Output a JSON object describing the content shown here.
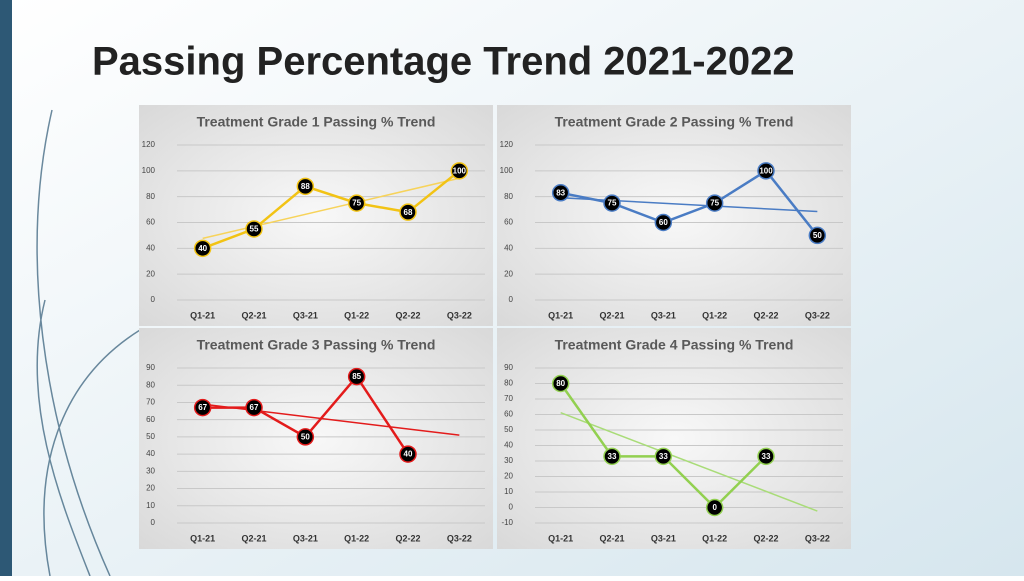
{
  "title": "Passing Percentage Trend 2021-2022",
  "chart_data": [
    {
      "type": "line",
      "title": "Treatment Grade 1 Passing % Trend",
      "categories": [
        "Q1-21",
        "Q2-21",
        "Q3-21",
        "Q1-22",
        "Q2-22",
        "Q3-22"
      ],
      "series": [
        {
          "color": "#f2c314",
          "values": [
            40,
            55,
            88,
            75,
            68,
            100
          ]
        }
      ],
      "ylim": [
        0,
        120
      ],
      "yticks": [
        0,
        20,
        40,
        60,
        80,
        100,
        120
      ],
      "grid": true,
      "trendline": true,
      "trend_color": "#f7d35a"
    },
    {
      "type": "line",
      "title": "Treatment Grade 2 Passing % Trend",
      "categories": [
        "Q1-21",
        "Q2-21",
        "Q3-21",
        "Q1-22",
        "Q2-22",
        "Q3-22"
      ],
      "series": [
        {
          "color": "#4a7cc4",
          "values": [
            83,
            75,
            60,
            75,
            100,
            50
          ]
        }
      ],
      "ylim": [
        0,
        120
      ],
      "yticks": [
        0,
        20,
        40,
        60,
        80,
        100,
        120
      ],
      "grid": true,
      "trendline": true,
      "trend_color": "#4a7cc4"
    },
    {
      "type": "line",
      "title": "Treatment Grade 3 Passing % Trend",
      "categories": [
        "Q1-21",
        "Q2-21",
        "Q3-21",
        "Q1-22",
        "Q2-22",
        "Q3-22"
      ],
      "series": [
        {
          "color": "#e31b1b",
          "values": [
            67,
            67,
            50,
            85,
            40,
            null
          ]
        }
      ],
      "ylim": [
        0,
        90
      ],
      "yticks": [
        0,
        10,
        20,
        30,
        40,
        50,
        60,
        70,
        80,
        90
      ],
      "grid": true,
      "trendline": true,
      "trend_color": "#e31b1b"
    },
    {
      "type": "line",
      "title": "Treatment Grade 4 Passing % Trend",
      "categories": [
        "Q1-21",
        "Q2-21",
        "Q3-21",
        "Q1-22",
        "Q2-22",
        "Q3-22"
      ],
      "series": [
        {
          "color": "#92d050",
          "values": [
            80,
            33,
            33,
            0,
            33,
            null
          ]
        }
      ],
      "ylim": [
        -10,
        90
      ],
      "yticks": [
        -10,
        0,
        10,
        20,
        30,
        40,
        50,
        60,
        70,
        80,
        90
      ],
      "grid": true,
      "trendline": true,
      "trend_color": "#a9dc78"
    }
  ]
}
